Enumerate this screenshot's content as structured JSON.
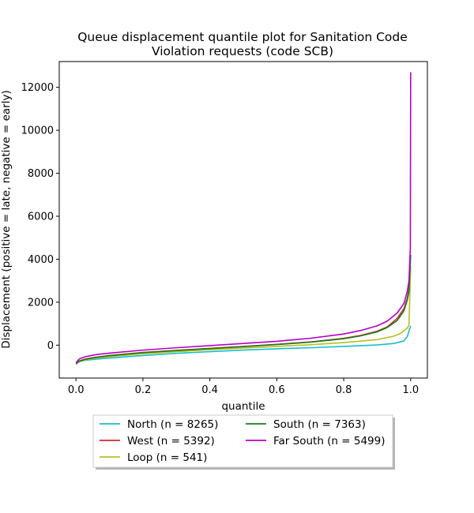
{
  "chart_data": {
    "type": "line",
    "title_lines": [
      "Queue displacement quantile plot for Sanitation Code",
      "Violation  requests (code SCB)"
    ],
    "xlabel": "quantile",
    "ylabel": "Displacement (positive = late, negative = early)",
    "xlim": [
      -0.05,
      1.05
    ],
    "ylim": [
      -1530,
      13200
    ],
    "xticks": [
      0.0,
      0.2,
      0.4,
      0.6,
      0.8,
      1.0
    ],
    "xtick_labels": [
      "0.0",
      "0.2",
      "0.4",
      "0.6",
      "0.8",
      "1.0"
    ],
    "yticks": [
      0,
      2000,
      4000,
      6000,
      8000,
      10000,
      12000
    ],
    "ytick_labels": [
      "0",
      "2000",
      "4000",
      "6000",
      "8000",
      "10000",
      "12000"
    ],
    "grid": false,
    "legend_position": "below-center",
    "legend_columns": 2,
    "series": [
      {
        "name": "North (n = 8265)",
        "color": "#17becf",
        "x": [
          0.0,
          0.01,
          0.03,
          0.06,
          0.1,
          0.2,
          0.3,
          0.4,
          0.5,
          0.6,
          0.7,
          0.8,
          0.9,
          0.95,
          0.98,
          0.99,
          0.995,
          1.0
        ],
        "y": [
          -850,
          -760,
          -700,
          -650,
          -600,
          -480,
          -380,
          -300,
          -230,
          -170,
          -120,
          -60,
          10,
          80,
          200,
          400,
          650,
          900
        ]
      },
      {
        "name": "West (n = 5392)",
        "color": "#d62728",
        "x": [
          0.0,
          0.01,
          0.03,
          0.06,
          0.1,
          0.2,
          0.3,
          0.4,
          0.5,
          0.6,
          0.7,
          0.8,
          0.85,
          0.9,
          0.93,
          0.96,
          0.98,
          0.99,
          0.995,
          1.0
        ],
        "y": [
          -870,
          -730,
          -640,
          -560,
          -480,
          -340,
          -240,
          -150,
          -60,
          40,
          150,
          320,
          450,
          650,
          850,
          1250,
          1700,
          2200,
          2600,
          3600
        ]
      },
      {
        "name": "Loop (n = 541)",
        "color": "#bcbd22",
        "x": [
          0.0,
          0.01,
          0.03,
          0.06,
          0.1,
          0.2,
          0.3,
          0.4,
          0.5,
          0.6,
          0.7,
          0.8,
          0.9,
          0.95,
          0.97,
          0.99,
          0.995,
          1.0
        ],
        "y": [
          -860,
          -760,
          -680,
          -600,
          -530,
          -400,
          -300,
          -210,
          -130,
          -60,
          20,
          120,
          260,
          420,
          550,
          800,
          950,
          3700
        ]
      },
      {
        "name": "South (n = 7363)",
        "color": "#1a7f1a",
        "x": [
          0.0,
          0.01,
          0.03,
          0.06,
          0.1,
          0.2,
          0.3,
          0.4,
          0.5,
          0.6,
          0.7,
          0.8,
          0.85,
          0.9,
          0.93,
          0.96,
          0.98,
          0.99,
          0.995,
          1.0
        ],
        "y": [
          -880,
          -750,
          -650,
          -570,
          -490,
          -350,
          -250,
          -160,
          -70,
          30,
          140,
          300,
          430,
          620,
          820,
          1150,
          1600,
          2100,
          2500,
          4200
        ]
      },
      {
        "name": "Far South (n = 5499)",
        "color": "#b400c8",
        "x": [
          0.0,
          0.01,
          0.03,
          0.06,
          0.1,
          0.2,
          0.3,
          0.4,
          0.5,
          0.6,
          0.7,
          0.8,
          0.85,
          0.9,
          0.93,
          0.96,
          0.98,
          0.99,
          0.995,
          0.999,
          1.0
        ],
        "y": [
          -820,
          -640,
          -530,
          -440,
          -370,
          -230,
          -120,
          -20,
          80,
          180,
          320,
          520,
          680,
          900,
          1120,
          1500,
          1950,
          2500,
          3000,
          4500,
          12700
        ]
      }
    ]
  }
}
